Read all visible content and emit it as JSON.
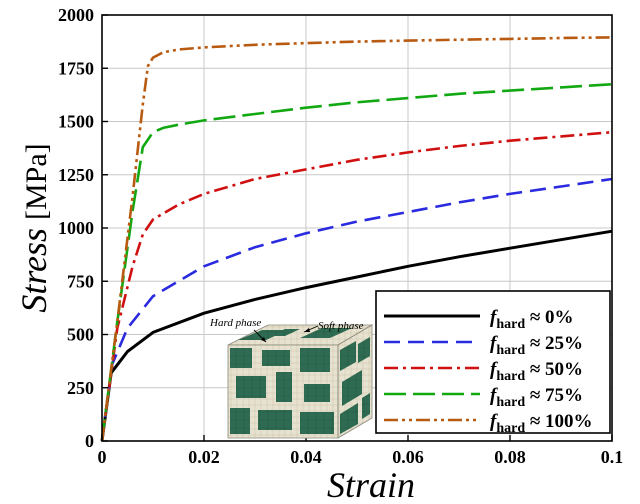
{
  "chart_data": {
    "type": "line",
    "xlabel": "Strain",
    "ylabel": "Stress",
    "ylabel_unit": "[MPa]",
    "xlim": [
      0,
      0.1
    ],
    "ylim": [
      0,
      2000
    ],
    "x_ticks": [
      0,
      0.02,
      0.04,
      0.06,
      0.08,
      0.1
    ],
    "x_tick_labels": [
      "0",
      "0.02",
      "0.04",
      "0.06",
      "0.08",
      "0.1"
    ],
    "y_ticks": [
      0,
      250,
      500,
      750,
      1000,
      1250,
      1500,
      1750,
      2000
    ],
    "y_tick_labels": [
      "0",
      "250",
      "500",
      "750",
      "1000",
      "1250",
      "1500",
      "1750",
      "2000"
    ],
    "grid": true,
    "legend_position": "bottom-right",
    "series": [
      {
        "name_main": "f",
        "name_sub": "hard",
        "name_rest": " ≈ 0%",
        "color": "#000000",
        "dash": "",
        "x": [
          0,
          0.0018,
          0.005,
          0.01,
          0.02,
          0.03,
          0.04,
          0.05,
          0.06,
          0.07,
          0.08,
          0.09,
          0.1
        ],
        "y": [
          0,
          320,
          420,
          510,
          600,
          665,
          720,
          770,
          820,
          865,
          905,
          945,
          985
        ]
      },
      {
        "name_main": "f",
        "name_sub": "hard",
        "name_rest": " ≈ 25%",
        "color": "#2a2ae0",
        "dash": "16,8",
        "x": [
          0,
          0.002,
          0.005,
          0.01,
          0.02,
          0.03,
          0.04,
          0.05,
          0.06,
          0.07,
          0.08,
          0.09,
          0.1
        ],
        "y": [
          0,
          360,
          530,
          680,
          820,
          910,
          975,
          1030,
          1075,
          1120,
          1160,
          1195,
          1230
        ]
      },
      {
        "name_main": "f",
        "name_sub": "hard",
        "name_rest": " ≈ 50%",
        "color": "#d01010",
        "dash": "14,5,3,5",
        "x": [
          0,
          0.003,
          0.006,
          0.008,
          0.01,
          0.015,
          0.02,
          0.03,
          0.04,
          0.05,
          0.06,
          0.07,
          0.08,
          0.09,
          0.1
        ],
        "y": [
          0,
          530,
          820,
          970,
          1040,
          1110,
          1160,
          1230,
          1275,
          1320,
          1355,
          1385,
          1410,
          1430,
          1450
        ]
      },
      {
        "name_main": "f",
        "name_sub": "hard",
        "name_rest": " ≈ 75%",
        "color": "#12a812",
        "dash": "22,7",
        "x": [
          0,
          0.003,
          0.006,
          0.008,
          0.01,
          0.012,
          0.015,
          0.02,
          0.03,
          0.04,
          0.05,
          0.06,
          0.07,
          0.08,
          0.09,
          0.1
        ],
        "y": [
          0,
          560,
          1080,
          1380,
          1450,
          1470,
          1485,
          1505,
          1535,
          1565,
          1590,
          1610,
          1630,
          1645,
          1660,
          1675
        ]
      },
      {
        "name_main": "f",
        "name_sub": "hard",
        "name_rest": " ≈ 100%",
        "color": "#b85a10",
        "dash": "14,4,3,4,3,4",
        "x": [
          0,
          0.003,
          0.006,
          0.008,
          0.009,
          0.01,
          0.012,
          0.015,
          0.02,
          0.03,
          0.04,
          0.05,
          0.06,
          0.07,
          0.08,
          0.09,
          0.1
        ],
        "y": [
          0,
          560,
          1150,
          1580,
          1760,
          1800,
          1825,
          1838,
          1848,
          1860,
          1868,
          1875,
          1880,
          1884,
          1888,
          1892,
          1895
        ]
      }
    ],
    "inset": {
      "hard_label": "Hard phase",
      "soft_label": "Soft phase"
    },
    "colors": {
      "inset_hard": "#2e6b52",
      "inset_soft": "#e7e2cf"
    }
  }
}
